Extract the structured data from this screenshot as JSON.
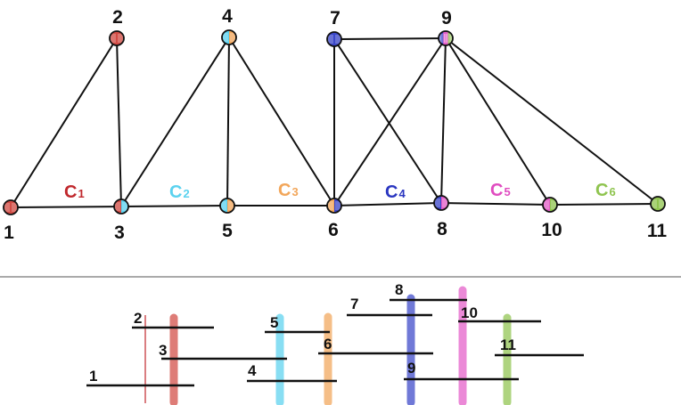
{
  "graph": {
    "vertices": [
      {
        "id": "1",
        "label": "1",
        "colors": [
          "#d24b44",
          "#d24b44"
        ]
      },
      {
        "id": "2",
        "label": "2",
        "colors": [
          "#d24b44",
          "#d24b44"
        ]
      },
      {
        "id": "3",
        "label": "3",
        "colors": [
          "#d24b44",
          "#5bd2ef"
        ]
      },
      {
        "id": "4",
        "label": "4",
        "colors": [
          "#5bd2ef",
          "#f2a65a"
        ]
      },
      {
        "id": "5",
        "label": "5",
        "colors": [
          "#5bd2ef",
          "#f2a65a"
        ]
      },
      {
        "id": "6",
        "label": "6",
        "colors": [
          "#f2a65a",
          "#3a46c8"
        ]
      },
      {
        "id": "7",
        "label": "7",
        "colors": [
          "#3a46c8",
          "#3a46c8"
        ]
      },
      {
        "id": "8",
        "label": "8",
        "colors": [
          "#3a46c8",
          "#e45cc8"
        ]
      },
      {
        "id": "9",
        "label": "9",
        "colors": [
          "#3a46c8",
          "#e45cc8",
          "#8fc44f"
        ]
      },
      {
        "id": "10",
        "label": "10",
        "colors": [
          "#e45cc8",
          "#8fc44f"
        ]
      },
      {
        "id": "11",
        "label": "11",
        "colors": [
          "#8fc44f",
          "#8fc44f"
        ]
      }
    ],
    "edges": [
      [
        "1",
        "2"
      ],
      [
        "1",
        "3"
      ],
      [
        "2",
        "3"
      ],
      [
        "3",
        "4"
      ],
      [
        "3",
        "5"
      ],
      [
        "4",
        "5"
      ],
      [
        "4",
        "6"
      ],
      [
        "5",
        "6"
      ],
      [
        "6",
        "7"
      ],
      [
        "6",
        "9"
      ],
      [
        "6",
        "8"
      ],
      [
        "7",
        "9"
      ],
      [
        "7",
        "8"
      ],
      [
        "8",
        "9"
      ],
      [
        "8",
        "10"
      ],
      [
        "9",
        "10"
      ],
      [
        "9",
        "11"
      ],
      [
        "10",
        "11"
      ]
    ],
    "clique_labels": [
      {
        "id": "c1",
        "letter": "C",
        "sub": "1",
        "color": "#c0282d"
      },
      {
        "id": "c2",
        "letter": "C",
        "sub": "2",
        "color": "#5bd2ef"
      },
      {
        "id": "c3",
        "letter": "C",
        "sub": "3",
        "color": "#f2a65a"
      },
      {
        "id": "c4",
        "letter": "C",
        "sub": "4",
        "color": "#2a36c0"
      },
      {
        "id": "c5",
        "letter": "C",
        "sub": "5",
        "color": "#e04cc0"
      },
      {
        "id": "c6",
        "letter": "C",
        "sub": "6",
        "color": "#8fc44f"
      }
    ]
  },
  "intervals": {
    "items": [
      {
        "id": "1",
        "label": "1",
        "color": "#111111"
      },
      {
        "id": "2",
        "label": "2",
        "color": "#111111"
      },
      {
        "id": "3",
        "label": "3",
        "color": "#c0282d"
      },
      {
        "id": "4",
        "label": "4",
        "color": "#111111"
      },
      {
        "id": "5",
        "label": "5",
        "color": "#5bd2ef"
      },
      {
        "id": "6",
        "label": "6",
        "color": "#111111"
      },
      {
        "id": "7",
        "label": "7",
        "color": "#111111"
      },
      {
        "id": "8",
        "label": "8",
        "color": "#111111"
      },
      {
        "id": "9",
        "label": "9",
        "color": "#111111"
      },
      {
        "id": "10",
        "label": "10",
        "color": "#111111"
      },
      {
        "id": "11",
        "label": "11",
        "color": "#111111"
      }
    ],
    "strips": [
      {
        "id": "s1",
        "color": "#d24b44"
      },
      {
        "id": "s2",
        "color": "#5bd2ef"
      },
      {
        "id": "s3",
        "color": "#f2a65a"
      },
      {
        "id": "s4",
        "color": "#3a46c8"
      },
      {
        "id": "s5",
        "color": "#e45cc8"
      },
      {
        "id": "s6",
        "color": "#8fc44f"
      }
    ],
    "marker_color": "#c0282d"
  },
  "divider_color": "#555555"
}
